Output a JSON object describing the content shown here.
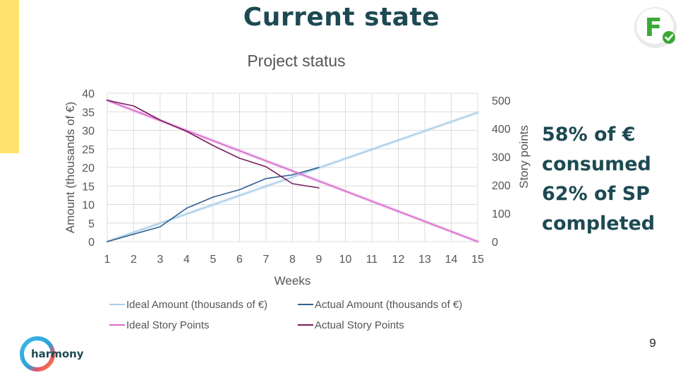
{
  "slide": {
    "title": "Current state",
    "badge_letter": "F",
    "callout_lines": [
      "58% of €",
      "consumed",
      "62% of SP",
      "completed"
    ],
    "page_number": "9",
    "logo_text": "harmony"
  },
  "colors": {
    "title": "#1d4a52",
    "accent_yellow": "#ffe36e",
    "badge_green": "#3aa935",
    "ideal_amount": "#a9cde8",
    "actual_amount": "#2f5f8f",
    "ideal_sp": "#d96fd0",
    "actual_sp": "#7a1e5e"
  },
  "chart_data": {
    "type": "line",
    "title": "Project status",
    "xlabel": "Weeks",
    "ylabel_left": "Amount (thousands of €)",
    "ylabel_right": "Story points",
    "x": [
      1,
      2,
      3,
      4,
      5,
      6,
      7,
      8,
      9,
      10,
      11,
      12,
      13,
      14,
      15
    ],
    "ylim_left": [
      0,
      40
    ],
    "yticks_left": [
      0,
      5,
      10,
      15,
      20,
      25,
      30,
      35,
      40
    ],
    "ylim_right": [
      0,
      525
    ],
    "yticks_right": [
      0,
      100,
      200,
      300,
      400,
      500
    ],
    "grid": true,
    "legend_position": "bottom",
    "series": [
      {
        "name": "Ideal Amount (thousands of €)",
        "axis": "left",
        "color": "#a9cde8",
        "x": [
          1,
          15
        ],
        "values": [
          0,
          34.8
        ]
      },
      {
        "name": "Actual Amount (thousands of €)",
        "axis": "left",
        "color": "#2f5f8f",
        "x": [
          1,
          2,
          3,
          4,
          5,
          6,
          7,
          8,
          9
        ],
        "values": [
          0,
          2,
          4,
          9,
          12,
          14,
          17,
          18,
          20
        ]
      },
      {
        "name": "Ideal Story Points",
        "axis": "right",
        "color": "#d96fd0",
        "x": [
          1,
          15
        ],
        "values": [
          500,
          0
        ]
      },
      {
        "name": "Actual Story Points",
        "axis": "right",
        "color": "#7a1e5e",
        "x": [
          1,
          2,
          3,
          4,
          5,
          6,
          7,
          8,
          9
        ],
        "values": [
          500,
          480,
          430,
          390,
          340,
          295,
          265,
          205,
          190
        ]
      }
    ]
  }
}
